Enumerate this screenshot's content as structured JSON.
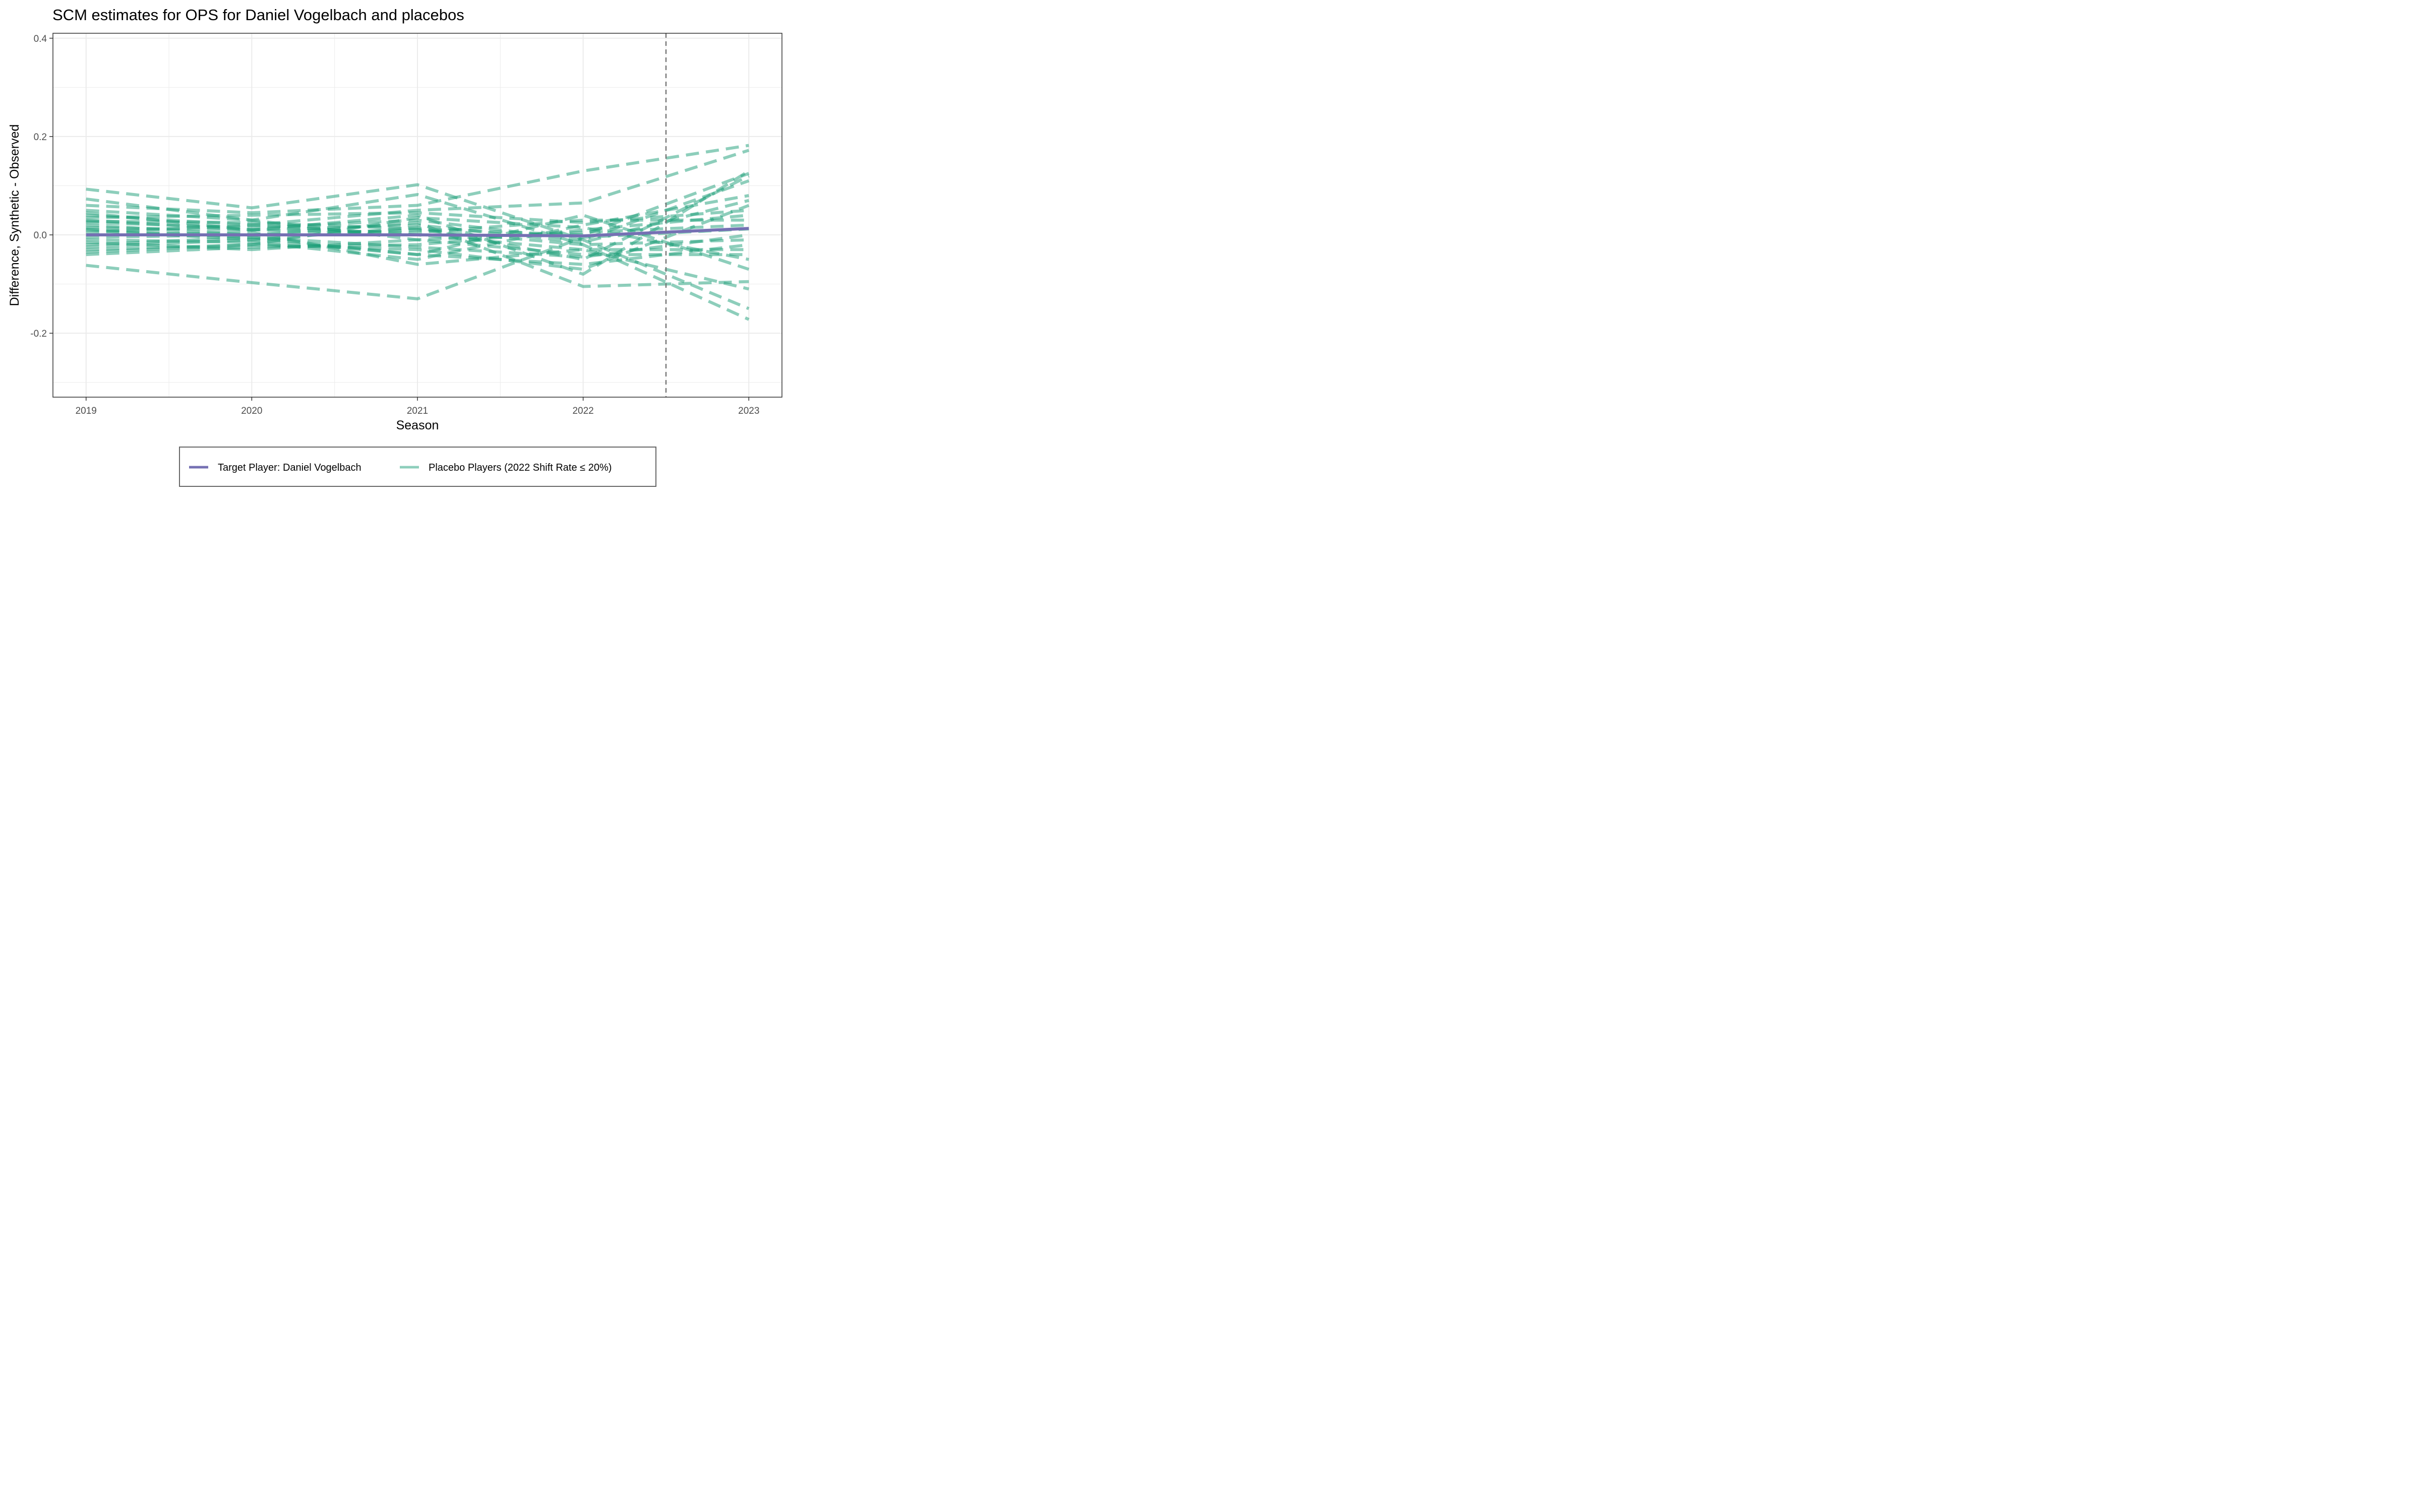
{
  "chart_data": {
    "type": "line",
    "title": "SCM estimates for OPS for Daniel Vogelbach and placebos",
    "xlabel": "Season",
    "ylabel": "Difference, Synthetic - Observed",
    "x": [
      2019,
      2020,
      2021,
      2022,
      2023
    ],
    "x_ticks": [
      2019,
      2020,
      2021,
      2022,
      2023
    ],
    "xlim": [
      2018.8,
      2023.2
    ],
    "ylim": [
      -0.33,
      0.41
    ],
    "y_ticks": [
      0.4,
      0.2,
      0.0,
      -0.2
    ],
    "y_tick_labels": [
      "0.4",
      "0.2",
      "0.0",
      "-0.2"
    ],
    "treatment_line_x": 2022.5,
    "grid": true,
    "legend_position": "bottom",
    "colors": {
      "target": "#7570b3",
      "placebo": "#1b9e77",
      "treatment_line": "#777777",
      "grid": "#ebebeb",
      "panel_border": "#333333"
    },
    "legend": [
      {
        "name": "Target Player: Daniel Vogelbach",
        "color": "#7570b3",
        "style": "solid"
      },
      {
        "name": "Placebo Players (2022 Shift Rate ≤ 20%)",
        "color": "#1b9e77",
        "style": "dashed"
      }
    ],
    "target_series": {
      "name": "Target Player: Daniel Vogelbach",
      "values": [
        0.0,
        0.0,
        0.0,
        -0.002,
        0.013
      ]
    },
    "placebo_series": [
      {
        "values": [
          0.093,
          0.055,
          0.102,
          -0.01,
          -0.15
        ]
      },
      {
        "values": [
          0.073,
          0.03,
          0.082,
          -0.02,
          -0.172
        ]
      },
      {
        "values": [
          -0.062,
          -0.097,
          -0.13,
          -0.005,
          0.012
        ]
      },
      {
        "values": [
          0.06,
          0.045,
          0.06,
          0.13,
          0.182
        ]
      },
      {
        "values": [
          0.04,
          0.02,
          0.05,
          0.065,
          0.172
        ]
      },
      {
        "values": [
          0.03,
          0.01,
          0.04,
          -0.08,
          0.13
        ]
      },
      {
        "values": [
          0.02,
          0.0,
          0.025,
          -0.105,
          -0.095
        ]
      },
      {
        "values": [
          0.01,
          -0.01,
          0.015,
          -0.05,
          0.12
        ]
      },
      {
        "values": [
          0.0,
          0.005,
          -0.06,
          -0.03,
          -0.11
        ]
      },
      {
        "values": [
          -0.01,
          -0.015,
          -0.05,
          0.02,
          0.08
        ]
      },
      {
        "values": [
          -0.02,
          -0.005,
          -0.04,
          0.04,
          -0.07
        ]
      },
      {
        "values": [
          -0.03,
          -0.02,
          -0.03,
          -0.07,
          0.06
        ]
      },
      {
        "values": [
          -0.04,
          -0.025,
          -0.02,
          0.01,
          0.04
        ]
      },
      {
        "values": [
          0.05,
          0.03,
          -0.01,
          -0.04,
          -0.04
        ]
      },
      {
        "values": [
          0.015,
          0.01,
          0.005,
          0.03,
          0.03
        ]
      },
      {
        "values": [
          -0.005,
          0.0,
          0.01,
          -0.02,
          -0.01
        ]
      },
      {
        "values": [
          0.025,
          0.015,
          0.03,
          -0.01,
          0.11
        ]
      },
      {
        "values": [
          -0.015,
          -0.03,
          -0.01,
          0.005,
          0.02
        ]
      },
      {
        "values": [
          0.005,
          0.02,
          0.0,
          -0.03,
          -0.03
        ]
      },
      {
        "values": [
          0.035,
          0.04,
          0.045,
          0.025,
          0.05
        ]
      },
      {
        "values": [
          -0.025,
          -0.01,
          -0.04,
          -0.06,
          -0.02
        ]
      },
      {
        "values": [
          0.045,
          0.01,
          0.02,
          -0.015,
          0.07
        ]
      },
      {
        "values": [
          -0.035,
          -0.02,
          0.035,
          0.015,
          -0.05
        ]
      },
      {
        "values": [
          0.012,
          -0.005,
          -0.025,
          -0.045,
          0.0
        ]
      },
      {
        "values": [
          0.028,
          0.025,
          0.012,
          0.0,
          0.125
        ]
      }
    ]
  }
}
